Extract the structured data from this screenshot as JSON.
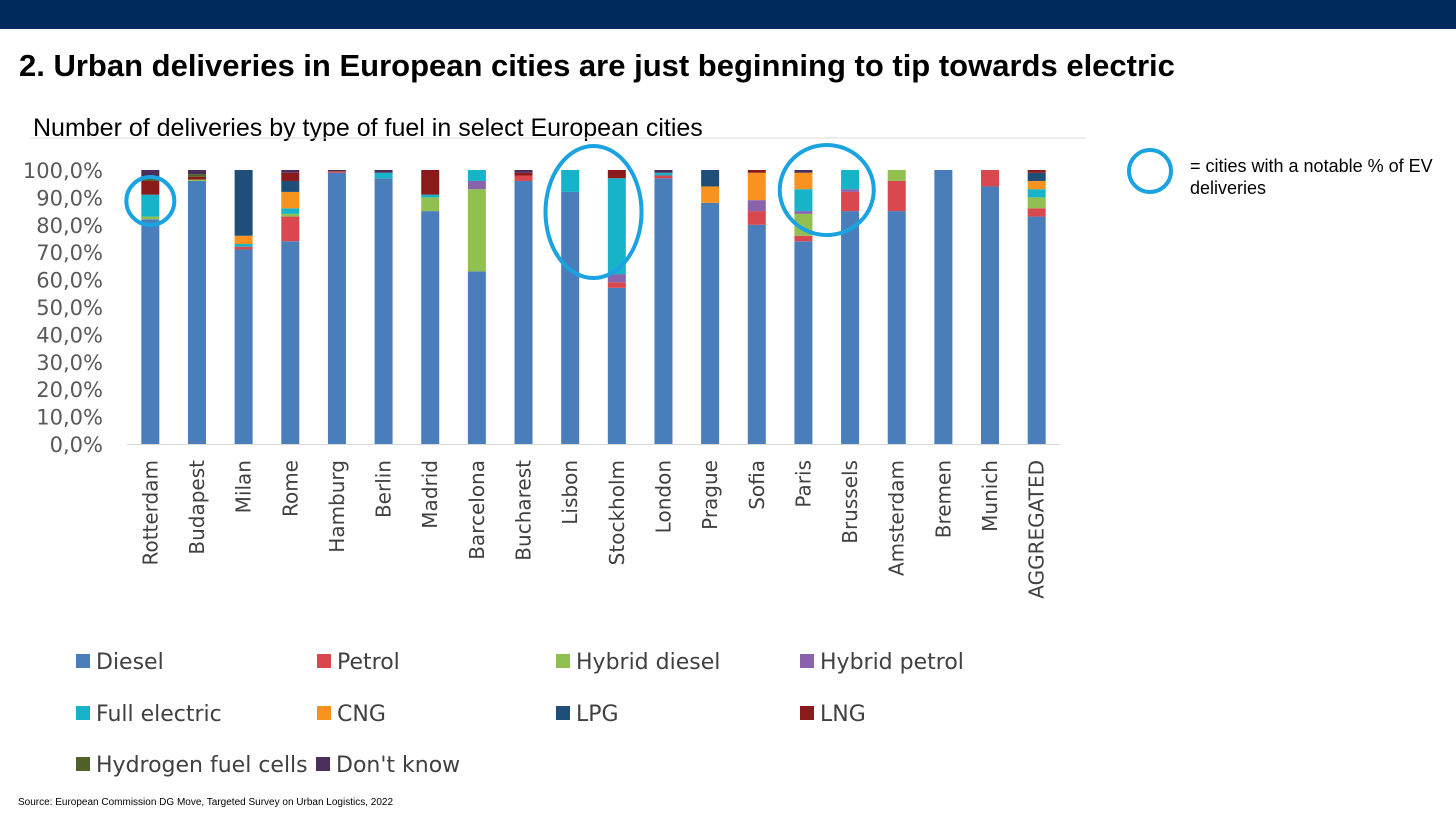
{
  "slide": {
    "title": "2. Urban deliveries in European cities are just beginning to tip towards electric",
    "note": "= cities with a notable % of EV deliveries",
    "source": "Source: European Commission DG Move, Targeted Survey on Urban Logistics, 2022"
  },
  "colors": {
    "top_bar": "#002a5c",
    "highlight_circle": "#1aa3e0"
  },
  "highlighted_cities": [
    "Rotterdam",
    "Lisbon",
    "Stockholm",
    "Paris",
    "Brussels"
  ],
  "chart_data": {
    "type": "bar",
    "stacked": true,
    "title": "Number of deliveries by type of fuel in select European cities",
    "xlabel": "",
    "ylabel": "",
    "ylim": [
      0,
      100
    ],
    "y_ticks": [
      "0,0%",
      "10,0%",
      "20,0%",
      "30,0%",
      "40,0%",
      "50,0%",
      "60,0%",
      "70,0%",
      "80,0%",
      "90,0%",
      "100,0%"
    ],
    "grid": false,
    "legend_position": "bottom",
    "categories": [
      "Rotterdam",
      "Budapest",
      "Milan",
      "Rome",
      "Hamburg",
      "Berlin",
      "Madrid",
      "Barcelona",
      "Bucharest",
      "Lisbon",
      "Stockholm",
      "London",
      "Prague",
      "Sofia",
      "Paris",
      "Brussels",
      "Amsterdam",
      "Bremen",
      "Munich",
      "AGGREGATED"
    ],
    "series": [
      {
        "name": "Diesel",
        "color": "#4a7ebb",
        "values": [
          82,
          96,
          71,
          74,
          99,
          97,
          85,
          63,
          96,
          92,
          57,
          97,
          88,
          80,
          74,
          85,
          85,
          100,
          94,
          83
        ]
      },
      {
        "name": "Petrol",
        "color": "#d9484f",
        "values": [
          0,
          0,
          1,
          9,
          0.5,
          0,
          0,
          0,
          2,
          0,
          2,
          1,
          0,
          5,
          2,
          7,
          11,
          0,
          6,
          3
        ]
      },
      {
        "name": "Hybrid diesel",
        "color": "#92c050",
        "values": [
          1,
          0.5,
          0,
          1,
          0,
          0,
          5,
          30,
          0,
          0,
          0,
          0,
          0,
          0,
          8,
          0,
          4,
          0,
          0,
          4
        ]
      },
      {
        "name": "Hybrid petrol",
        "color": "#8a63ad",
        "values": [
          0,
          0,
          0,
          0,
          0,
          0,
          0,
          3,
          0,
          0,
          3,
          0,
          0,
          4,
          1,
          1,
          0,
          0,
          0,
          0
        ]
      },
      {
        "name": "Full electric",
        "color": "#17b3c9",
        "values": [
          8,
          0,
          1,
          2,
          0,
          2,
          1,
          4,
          0,
          8,
          35,
          1,
          0,
          0,
          8,
          7,
          0,
          0,
          0,
          3
        ]
      },
      {
        "name": "CNG",
        "color": "#f7931e",
        "values": [
          0,
          0,
          3,
          6,
          0,
          0,
          0,
          0.5,
          0,
          0,
          0,
          0,
          6,
          10,
          6,
          0,
          0,
          0,
          0,
          3
        ]
      },
      {
        "name": "LPG",
        "color": "#1f4e79",
        "values": [
          0,
          0,
          24,
          4,
          0,
          0,
          0,
          0,
          0,
          0,
          0,
          0,
          6,
          0,
          0,
          0,
          0,
          0,
          0,
          3
        ]
      },
      {
        "name": "LNG",
        "color": "#8b1a1a",
        "values": [
          5,
          1,
          0,
          3,
          0,
          0,
          9,
          0,
          1,
          0,
          3,
          0,
          0,
          1,
          0,
          0,
          0,
          0,
          0,
          1
        ]
      },
      {
        "name": "Hydrogen fuel cells",
        "color": "#4f6228",
        "values": [
          1,
          1,
          0,
          0,
          0,
          0,
          0,
          0,
          0,
          0,
          0,
          0,
          0,
          0,
          0,
          0,
          0,
          0,
          0,
          0
        ]
      },
      {
        "name": "Don't know",
        "color": "#4b2e59",
        "values": [
          3,
          1.5,
          0,
          1,
          0.5,
          1,
          0,
          0,
          1,
          0,
          0,
          1,
          0,
          0,
          1,
          0,
          0.5,
          0,
          0,
          0
        ]
      }
    ]
  }
}
